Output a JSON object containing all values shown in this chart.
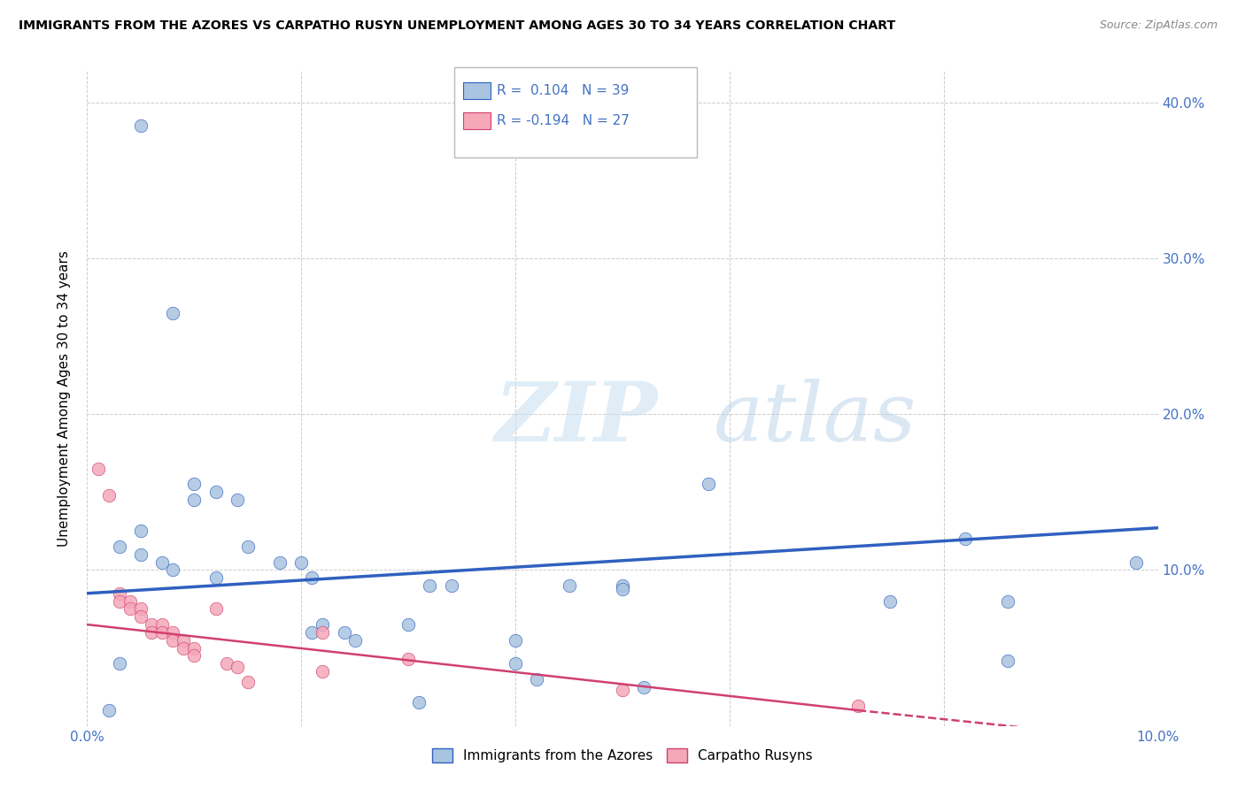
{
  "title": "IMMIGRANTS FROM THE AZORES VS CARPATHO RUSYN UNEMPLOYMENT AMONG AGES 30 TO 34 YEARS CORRELATION CHART",
  "source": "Source: ZipAtlas.com",
  "ylabel": "Unemployment Among Ages 30 to 34 years",
  "xlim": [
    0.0,
    0.1
  ],
  "ylim": [
    0.0,
    0.42
  ],
  "legend_label1": "Immigrants from the Azores",
  "legend_label2": "Carpatho Rusyns",
  "r1": "0.104",
  "n1": "39",
  "r2": "-0.194",
  "n2": "27",
  "color1": "#a8c4e0",
  "color2": "#f4a8b8",
  "line_color1": "#3060c0",
  "line_color2": "#d04070",
  "watermark_zip": "ZIP",
  "watermark_atlas": "atlas",
  "blue_line": [
    [
      0.0,
      0.085
    ],
    [
      0.1,
      0.127
    ]
  ],
  "pink_line_solid": [
    [
      0.0,
      0.065
    ],
    [
      0.072,
      0.01
    ]
  ],
  "pink_line_dashed": [
    [
      0.072,
      0.01
    ],
    [
      0.1,
      -0.01
    ]
  ],
  "blue_points": [
    [
      0.005,
      0.385
    ],
    [
      0.008,
      0.265
    ],
    [
      0.01,
      0.155
    ],
    [
      0.005,
      0.125
    ],
    [
      0.003,
      0.115
    ],
    [
      0.005,
      0.11
    ],
    [
      0.007,
      0.105
    ],
    [
      0.008,
      0.1
    ],
    [
      0.01,
      0.145
    ],
    [
      0.012,
      0.15
    ],
    [
      0.014,
      0.145
    ],
    [
      0.012,
      0.095
    ],
    [
      0.015,
      0.115
    ],
    [
      0.018,
      0.105
    ],
    [
      0.02,
      0.105
    ],
    [
      0.021,
      0.095
    ],
    [
      0.021,
      0.06
    ],
    [
      0.022,
      0.065
    ],
    [
      0.024,
      0.06
    ],
    [
      0.025,
      0.055
    ],
    [
      0.03,
      0.065
    ],
    [
      0.032,
      0.09
    ],
    [
      0.034,
      0.09
    ],
    [
      0.031,
      0.015
    ],
    [
      0.04,
      0.055
    ],
    [
      0.04,
      0.04
    ],
    [
      0.042,
      0.03
    ],
    [
      0.045,
      0.09
    ],
    [
      0.05,
      0.09
    ],
    [
      0.05,
      0.088
    ],
    [
      0.052,
      0.025
    ],
    [
      0.002,
      0.01
    ],
    [
      0.003,
      0.04
    ],
    [
      0.058,
      0.155
    ],
    [
      0.075,
      0.08
    ],
    [
      0.082,
      0.12
    ],
    [
      0.086,
      0.08
    ],
    [
      0.086,
      0.042
    ],
    [
      0.098,
      0.105
    ]
  ],
  "pink_points": [
    [
      0.001,
      0.165
    ],
    [
      0.002,
      0.148
    ],
    [
      0.003,
      0.085
    ],
    [
      0.003,
      0.08
    ],
    [
      0.004,
      0.08
    ],
    [
      0.004,
      0.075
    ],
    [
      0.005,
      0.075
    ],
    [
      0.005,
      0.07
    ],
    [
      0.006,
      0.065
    ],
    [
      0.006,
      0.06
    ],
    [
      0.007,
      0.065
    ],
    [
      0.007,
      0.06
    ],
    [
      0.008,
      0.06
    ],
    [
      0.008,
      0.055
    ],
    [
      0.009,
      0.055
    ],
    [
      0.009,
      0.05
    ],
    [
      0.01,
      0.05
    ],
    [
      0.01,
      0.045
    ],
    [
      0.012,
      0.075
    ],
    [
      0.013,
      0.04
    ],
    [
      0.014,
      0.038
    ],
    [
      0.015,
      0.028
    ],
    [
      0.022,
      0.06
    ],
    [
      0.022,
      0.035
    ],
    [
      0.03,
      0.043
    ],
    [
      0.05,
      0.023
    ],
    [
      0.072,
      0.013
    ]
  ]
}
